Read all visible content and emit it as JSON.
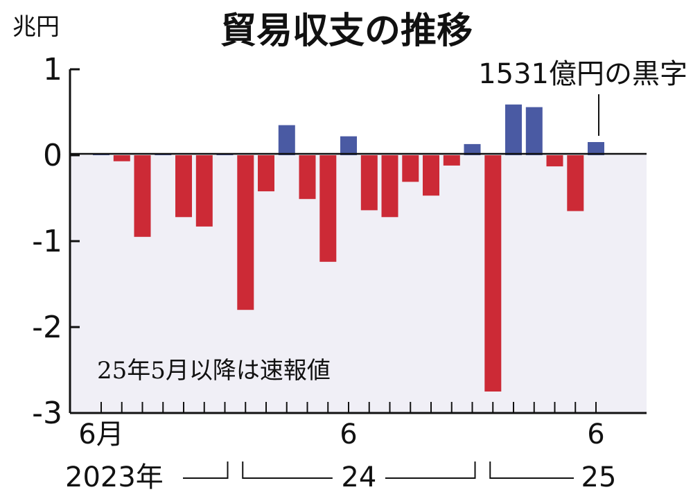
{
  "chart_data": {
    "type": "bar",
    "title": "貿易収支の推移",
    "unit_label": "兆円",
    "ylim": [
      -3,
      1
    ],
    "y_ticks": [
      {
        "value": 1,
        "label": "1"
      },
      {
        "value": 0,
        "label": "0"
      },
      {
        "value": -1,
        "label": "-1"
      },
      {
        "value": -2,
        "label": "-2"
      },
      {
        "value": -3,
        "label": "-3"
      }
    ],
    "categories": [
      "2023-06",
      "2023-07",
      "2023-08",
      "2023-09",
      "2023-10",
      "2023-11",
      "2023-12",
      "2024-01",
      "2024-02",
      "2024-03",
      "2024-04",
      "2024-05",
      "2024-06",
      "2024-07",
      "2024-08",
      "2024-09",
      "2024-10",
      "2024-11",
      "2024-12",
      "2025-01",
      "2025-02",
      "2025-03",
      "2025-04",
      "2025-05",
      "2025-06"
    ],
    "values": [
      0.02,
      -0.07,
      -0.95,
      0.02,
      -0.72,
      -0.83,
      0.02,
      -1.8,
      -0.42,
      0.35,
      -0.51,
      -1.24,
      0.22,
      -0.64,
      -0.72,
      -0.31,
      -0.47,
      -0.12,
      0.13,
      -2.75,
      0.59,
      0.56,
      -0.13,
      -0.65,
      0.1531
    ],
    "positive_color": "#4a5aa3",
    "negative_color": "#cc2a36",
    "negative_area_color": "#f0eff6",
    "x_tick_labels": [
      {
        "index": 0,
        "label": "6月"
      },
      {
        "index": 12,
        "label": "6"
      },
      {
        "index": 24,
        "label": "6"
      }
    ],
    "year_labels": [
      {
        "label": "2023年",
        "from": 0,
        "to": 6
      },
      {
        "label": "24",
        "from": 7,
        "to": 18
      },
      {
        "label": "25",
        "from": 19,
        "to": 24
      }
    ],
    "note": "25年5月以降は速報値",
    "annotation": {
      "index": 24,
      "text": "1531億円の黒字"
    }
  }
}
